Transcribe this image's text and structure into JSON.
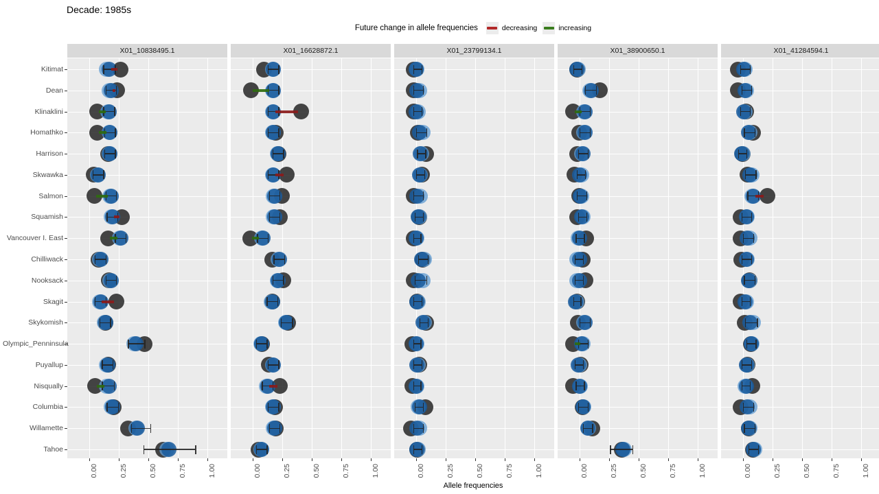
{
  "title": "Decade: 1985s",
  "legend": {
    "title": "Future change in allele frequencies",
    "items": [
      {
        "label": "decreasing",
        "color": "#B22929"
      },
      {
        "label": "increasing",
        "color": "#3A7D1E"
      }
    ]
  },
  "colors": {
    "panel_background": "#EBEBEB",
    "strip_background": "#D9D9D9",
    "gridline": "#FFFFFF",
    "dark_point": "#262626",
    "light_blue_point": "#5F9BD2",
    "dark_blue_point": "#195A9C",
    "decreasing_segment": "#8A1B1B",
    "increasing_segment": "#2F6B10",
    "error_bar": "#232323"
  },
  "chart_data": {
    "type": "scatter",
    "title": "Decade: 1985s",
    "xlabel": "Allele frequencies",
    "ylabel": "",
    "xticks": [
      0,
      0.25,
      0.5,
      0.75,
      1.0
    ],
    "xtick_labels": [
      "0.00",
      "0.25",
      "0.50",
      "0.75",
      "1.00"
    ],
    "xlim": [
      -0.18,
      1.17
    ],
    "grid": "major-white-on-gray",
    "legend_position": "top-center",
    "facets": [
      "X01_10838495.1",
      "X01_16628872.1",
      "X01_23799134.1",
      "X01_38900650.1",
      "X01_41284594.1"
    ],
    "categories": [
      "Kitimat",
      "Dean",
      "Klinaklini",
      "Homathko",
      "Harrison",
      "Skwawka",
      "Salmon",
      "Squamish",
      "Vancouver I. East",
      "Chilliwack",
      "Nooksack",
      "Skagit",
      "Skykomish",
      "Olympic_Penninsula",
      "Puyallup",
      "Nisqually",
      "Columbia",
      "Willamette",
      "Tahoe"
    ],
    "row_format": "[dark_point, light_blue_point, dark_blue_point, err_low, err_high, segment(null | [direction, from, to])]",
    "points": {
      "X01_10838495.1": [
        [
          0.27,
          0.15,
          0.17,
          0.12,
          0.22,
          [
            "decreasing",
            0.19,
            0.24
          ]
        ],
        [
          0.24,
          0.17,
          0.19,
          0.14,
          0.23,
          [
            "decreasing",
            0.2,
            0.225
          ]
        ],
        [
          0.07,
          0.16,
          0.17,
          0.12,
          0.215,
          [
            "increasing",
            0.085,
            0.145
          ]
        ],
        [
          0.07,
          0.17,
          0.18,
          0.13,
          0.22,
          [
            "increasing",
            0.085,
            0.15
          ]
        ],
        [
          0.16,
          0.17,
          0.18,
          0.13,
          0.22,
          null
        ],
        [
          0.04,
          0.07,
          0.08,
          0.03,
          0.12,
          null
        ],
        [
          0.045,
          0.18,
          0.19,
          0.14,
          0.23,
          [
            "increasing",
            0.06,
            0.16
          ]
        ],
        [
          0.28,
          0.19,
          0.2,
          0.15,
          0.24,
          [
            "decreasing",
            0.21,
            0.26
          ]
        ],
        [
          0.165,
          0.26,
          0.27,
          0.22,
          0.31,
          [
            "increasing",
            0.18,
            0.24
          ]
        ],
        [
          0.08,
          0.09,
          0.1,
          0.05,
          0.14,
          null
        ],
        [
          0.17,
          0.18,
          0.19,
          0.14,
          0.23,
          null
        ],
        [
          0.23,
          0.09,
          0.1,
          0.05,
          0.14,
          [
            "decreasing",
            0.11,
            0.21
          ]
        ],
        [
          0.14,
          0.13,
          0.14,
          0.09,
          0.18,
          null
        ],
        [
          0.47,
          0.38,
          0.4,
          0.33,
          0.47,
          null
        ],
        [
          0.16,
          0.15,
          0.16,
          0.11,
          0.2,
          null
        ],
        [
          0.05,
          0.15,
          0.17,
          0.11,
          0.21,
          [
            "increasing",
            0.065,
            0.13
          ]
        ],
        [
          0.21,
          0.19,
          0.2,
          0.15,
          0.245,
          null
        ],
        [
          0.33,
          0.4,
          0.41,
          0.355,
          0.52,
          null
        ],
        [
          0.63,
          0.66,
          0.68,
          0.46,
          0.9,
          null
        ]
      ],
      "X01_16628872.1": [
        [
          0.1,
          0.17,
          0.18,
          0.13,
          0.22,
          null
        ],
        [
          -0.01,
          0.17,
          0.18,
          0.13,
          0.22,
          [
            "increasing",
            0.005,
            0.145
          ]
        ],
        [
          0.41,
          0.17,
          0.18,
          0.13,
          0.22,
          [
            "decreasing",
            0.195,
            0.385
          ]
        ],
        [
          0.2,
          0.17,
          0.18,
          0.13,
          0.22,
          null
        ],
        [
          0.22,
          0.21,
          0.22,
          0.17,
          0.26,
          null
        ],
        [
          0.29,
          0.17,
          0.18,
          0.13,
          0.22,
          [
            "decreasing",
            0.195,
            0.265
          ]
        ],
        [
          0.25,
          0.18,
          0.19,
          0.14,
          0.23,
          null
        ],
        [
          0.23,
          0.18,
          0.19,
          0.14,
          0.23,
          null
        ],
        [
          -0.02,
          0.08,
          0.09,
          0.04,
          0.13,
          [
            "increasing",
            -0.005,
            0.055
          ]
        ],
        [
          0.17,
          0.22,
          0.23,
          0.18,
          0.27,
          null
        ],
        [
          0.26,
          0.21,
          0.22,
          0.17,
          0.26,
          null
        ],
        [
          0.17,
          0.16,
          0.17,
          0.12,
          0.21,
          null
        ],
        [
          0.3,
          0.28,
          0.29,
          0.24,
          0.335,
          null
        ],
        [
          0.08,
          0.07,
          0.08,
          0.03,
          0.12,
          null
        ],
        [
          0.14,
          0.17,
          0.18,
          0.13,
          0.22,
          null
        ],
        [
          0.23,
          0.12,
          0.13,
          0.08,
          0.17,
          [
            "decreasing",
            0.145,
            0.21
          ]
        ],
        [
          0.19,
          0.17,
          0.18,
          0.13,
          0.22,
          null
        ],
        [
          0.2,
          0.18,
          0.19,
          0.14,
          0.23,
          null
        ],
        [
          0.05,
          0.07,
          0.08,
          0.03,
          0.12,
          null
        ]
      ],
      "X01_23799134.1": [
        [
          -0.02,
          0.01,
          0.0,
          -0.02,
          0.05,
          null
        ],
        [
          -0.02,
          0.03,
          0.01,
          -0.02,
          0.06,
          null
        ],
        [
          -0.02,
          0.02,
          0.0,
          -0.02,
          0.05,
          null
        ],
        [
          0.02,
          0.06,
          0.03,
          0.0,
          0.09,
          null
        ],
        [
          0.09,
          0.05,
          0.04,
          0.01,
          0.08,
          null
        ],
        [
          0.05,
          0.04,
          0.03,
          0.0,
          0.07,
          null
        ],
        [
          -0.02,
          0.04,
          0.01,
          -0.02,
          0.06,
          null
        ],
        [
          0.03,
          0.03,
          0.02,
          -0.01,
          0.06,
          null
        ],
        [
          -0.02,
          0.01,
          0.0,
          -0.02,
          0.04,
          null
        ],
        [
          0.06,
          0.07,
          0.05,
          0.02,
          0.1,
          null
        ],
        [
          -0.02,
          0.06,
          0.02,
          -0.01,
          0.09,
          null
        ],
        [
          0.01,
          0.02,
          0.01,
          -0.02,
          0.05,
          null
        ],
        [
          0.09,
          0.07,
          0.06,
          0.03,
          0.1,
          null
        ],
        [
          -0.03,
          0.01,
          0.0,
          -0.02,
          0.04,
          null
        ],
        [
          0.03,
          0.02,
          0.01,
          -0.02,
          0.05,
          null
        ],
        [
          -0.03,
          0.01,
          0.0,
          -0.02,
          0.04,
          null
        ],
        [
          0.08,
          0.02,
          0.03,
          -0.01,
          0.06,
          null
        ],
        [
          -0.04,
          0.03,
          0.01,
          -0.02,
          0.06,
          null
        ],
        [
          0.01,
          0.02,
          0.01,
          -0.02,
          0.05,
          null
        ]
      ],
      "X01_38900650.1": [
        [
          -0.02,
          -0.01,
          -0.02,
          -0.05,
          0.02,
          null
        ],
        [
          0.175,
          0.09,
          0.1,
          0.05,
          0.14,
          null
        ],
        [
          -0.05,
          0.04,
          0.05,
          0.0,
          0.09,
          [
            "increasing",
            -0.035,
            0.02
          ]
        ],
        [
          0.0,
          0.04,
          0.05,
          0.0,
          0.09,
          null
        ],
        [
          -0.02,
          0.02,
          0.03,
          -0.01,
          0.07,
          null
        ],
        [
          -0.04,
          0.02,
          0.0,
          -0.02,
          0.05,
          null
        ],
        [
          0.0,
          0.02,
          0.01,
          -0.02,
          0.06,
          null
        ],
        [
          -0.02,
          0.03,
          0.02,
          -0.01,
          0.06,
          null
        ],
        [
          0.06,
          -0.01,
          0.0,
          -0.03,
          0.04,
          null
        ],
        [
          0.03,
          -0.02,
          0.0,
          -0.04,
          0.03,
          null
        ],
        [
          0.05,
          -0.02,
          0.0,
          -0.04,
          0.03,
          null
        ],
        [
          -0.02,
          -0.02,
          -0.03,
          -0.05,
          0.01,
          null
        ],
        [
          -0.01,
          0.04,
          0.05,
          0.0,
          0.09,
          null
        ],
        [
          -0.05,
          0.03,
          0.02,
          -0.01,
          0.07,
          [
            "increasing",
            -0.035,
            0.01
          ]
        ],
        [
          0.01,
          0.0,
          -0.01,
          -0.04,
          0.03,
          null
        ],
        [
          -0.05,
          0.01,
          0.0,
          -0.03,
          0.04,
          null
        ],
        [
          0.03,
          0.04,
          0.03,
          -0.01,
          0.07,
          null
        ],
        [
          0.11,
          0.08,
          0.07,
          0.03,
          0.11,
          null
        ],
        [
          0.36,
          0.38,
          0.37,
          0.26,
          0.45,
          null
        ]
      ],
      "X01_41284594.1": [
        [
          -0.04,
          0.02,
          0.01,
          -0.02,
          0.06,
          null
        ],
        [
          -0.04,
          0.03,
          0.02,
          -0.01,
          0.07,
          null
        ],
        [
          0.03,
          0.02,
          0.01,
          -0.02,
          0.06,
          null
        ],
        [
          0.09,
          0.06,
          0.05,
          0.01,
          0.1,
          null
        ],
        [
          0.0,
          0.0,
          -0.01,
          -0.04,
          0.03,
          null
        ],
        [
          0.04,
          0.08,
          0.06,
          0.02,
          0.11,
          null
        ],
        [
          0.21,
          0.08,
          0.09,
          0.04,
          0.13,
          [
            "decreasing",
            0.105,
            0.18
          ]
        ],
        [
          -0.02,
          0.04,
          0.03,
          -0.01,
          0.07,
          null
        ],
        [
          -0.02,
          0.06,
          0.04,
          0.0,
          0.09,
          null
        ],
        [
          -0.01,
          0.04,
          0.03,
          -0.01,
          0.07,
          null
        ],
        [
          0.06,
          0.06,
          0.05,
          0.01,
          0.1,
          null
        ],
        [
          -0.02,
          0.03,
          0.02,
          -0.01,
          0.06,
          null
        ],
        [
          0.02,
          0.09,
          0.06,
          0.02,
          0.12,
          null
        ],
        [
          0.07,
          0.08,
          0.07,
          0.03,
          0.11,
          null
        ],
        [
          0.04,
          0.04,
          0.03,
          -0.01,
          0.07,
          null
        ],
        [
          0.08,
          0.02,
          0.03,
          -0.01,
          0.06,
          null
        ],
        [
          -0.02,
          0.06,
          0.04,
          0.0,
          0.09,
          null
        ],
        [
          0.05,
          0.06,
          0.05,
          0.01,
          0.1,
          null
        ],
        [
          0.09,
          0.1,
          0.09,
          0.05,
          0.13,
          null
        ]
      ]
    }
  }
}
